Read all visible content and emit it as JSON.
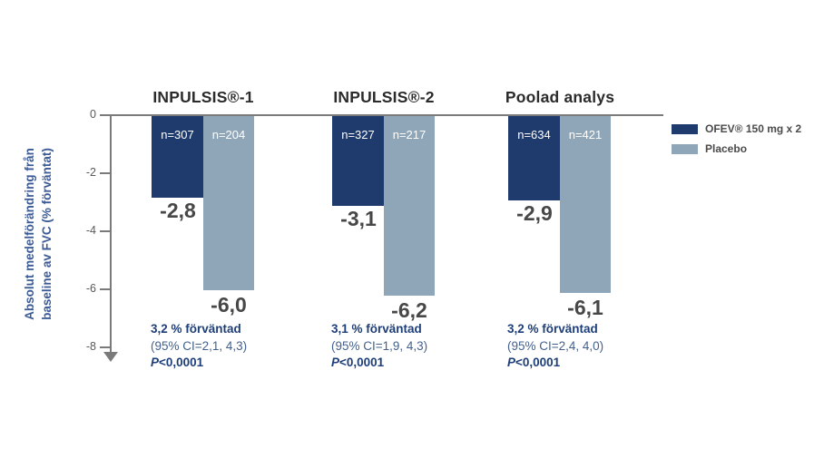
{
  "chart_data": {
    "type": "bar",
    "ylabel": "Absolut medelförändring från baseline av FVC (% förväntat)",
    "ylabel_line1": "Absolut medelförändring från",
    "ylabel_line2": "baseline av FVC (% förväntat)",
    "yticks": [
      "0",
      "-2",
      "-4",
      "-6",
      "-8"
    ],
    "ylim": [
      -8,
      0
    ],
    "grid": false,
    "legend_position": "right",
    "categories": [
      "INPULSIS®-1",
      "INPULSIS®-2",
      "Poolad analys"
    ],
    "series": [
      {
        "name": "OFEV® 150 mg x 2",
        "color": "#1F3A6D",
        "values": [
          -2.8,
          -3.1,
          -2.9
        ],
        "value_labels": [
          "-2,8",
          "-3,1",
          "-2,9"
        ],
        "n_labels": [
          "n=307",
          "n=327",
          "n=634"
        ]
      },
      {
        "name": "Placebo",
        "color": "#8FA6B8",
        "values": [
          -6.0,
          -6.2,
          -6.1
        ],
        "value_labels": [
          "-6,0",
          "-6,2",
          "-6,1"
        ],
        "n_labels": [
          "n=204",
          "n=217",
          "n=421"
        ]
      }
    ],
    "annotations": [
      {
        "difference": "3,2 % förväntad",
        "ci": "(95% CI=2,1, 4,3)",
        "p_label": "P",
        "p_value": "<0,0001"
      },
      {
        "difference": "3,1 % förväntad",
        "ci": "(95% CI=1,9, 4,3)",
        "p_label": "P",
        "p_value": "<0,0001"
      },
      {
        "difference": "3,2 % förväntad",
        "ci": "(95% CI=2,4, 4,0)",
        "p_label": "P",
        "p_value": "<0,0001"
      }
    ],
    "legend": [
      {
        "label": "OFEV® 150 mg x 2",
        "color": "#1F3A6D"
      },
      {
        "label": "Placebo",
        "color": "#8FA6B8"
      }
    ]
  },
  "colors": {
    "ofev_bar": "#1F3A6D",
    "placebo_bar": "#8FA6B8",
    "axis": "#7A7A7A",
    "tick_label": "#595959",
    "value_label": "#474747",
    "group_title": "#2B2B2B",
    "annotation_primary": "#1E3E78",
    "annotation_ci": "#44618D",
    "ylabel": "#3B5A96",
    "legend_text": "#4A4A4A",
    "background": "#FFFFFF"
  }
}
